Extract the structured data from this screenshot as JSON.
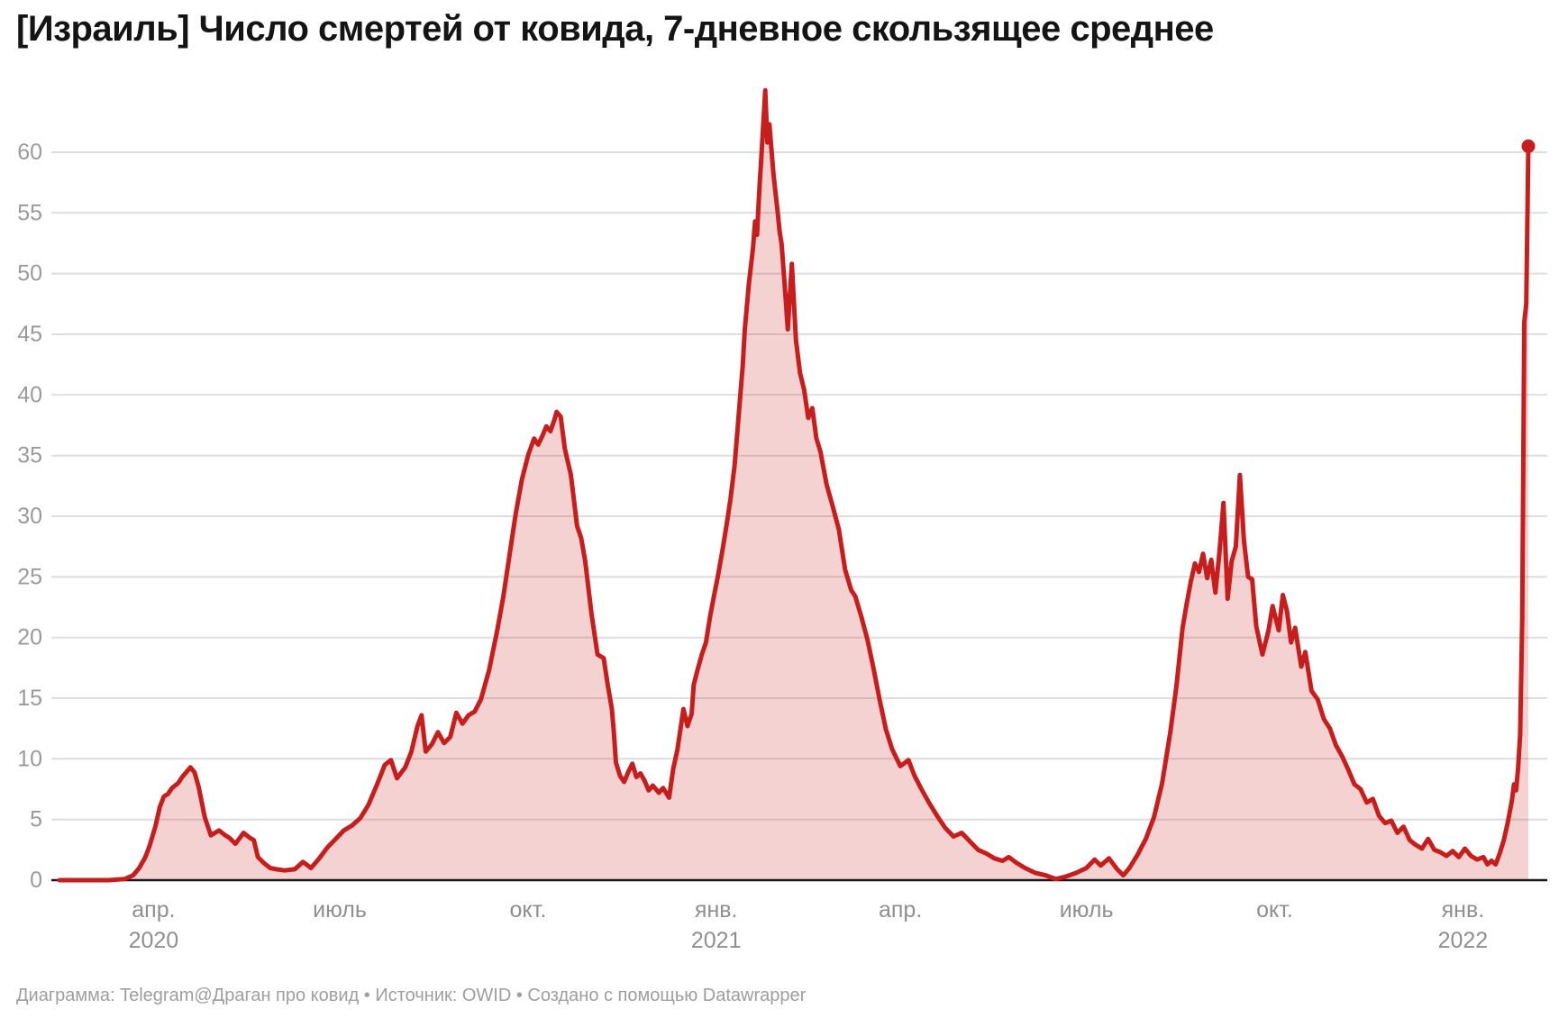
{
  "title": "[Израиль] Число смертей от ковида, 7-дневное скользящее среднее",
  "footer": "Диаграмма: Telegram@Драган про ковид • Источник: OWID • Создано с помощью Datawrapper",
  "colors": {
    "line": "#c71e1d",
    "area_fill": "rgba(199,30,29,0.2)",
    "grid": "#dedede",
    "axis": "#18181a",
    "y_tick_label": "#9a9a9a",
    "x_tick_label": "#8f8f8f",
    "title": "#141414",
    "footer": "#9e9e9e",
    "background": "#ffffff"
  },
  "chart_data": {
    "type": "area",
    "title": "[Израиль] Число смертей от ковида, 7-дневное скользящее среднее",
    "series_name": "Число смертей от ковида, 7-дневное скользящее среднее",
    "xlabel": "",
    "ylabel": "",
    "grid": "horizontal",
    "legend": "none",
    "x_domain": [
      "2020-02-15",
      "2022-02-02"
    ],
    "ylim": [
      0,
      66
    ],
    "y_ticks": [
      0,
      5,
      10,
      15,
      20,
      25,
      30,
      35,
      40,
      45,
      50,
      55,
      60
    ],
    "x_ticks": [
      {
        "date": "2020-04-01",
        "label": "апр.",
        "year": "2020"
      },
      {
        "date": "2020-07-01",
        "label": "июль",
        "year": ""
      },
      {
        "date": "2020-10-01",
        "label": "окт.",
        "year": ""
      },
      {
        "date": "2021-01-01",
        "label": "янв.",
        "year": "2021"
      },
      {
        "date": "2021-04-01",
        "label": "апр.",
        "year": ""
      },
      {
        "date": "2021-07-01",
        "label": "июль",
        "year": ""
      },
      {
        "date": "2021-10-01",
        "label": "окт.",
        "year": ""
      },
      {
        "date": "2022-01-01",
        "label": "янв.",
        "year": "2022"
      }
    ],
    "last_point": {
      "date": "2022-02-02",
      "value": 60.5
    },
    "points": [
      [
        "2020-02-15",
        0.0
      ],
      [
        "2020-03-01",
        0.0
      ],
      [
        "2020-03-10",
        0.0
      ],
      [
        "2020-03-18",
        0.1
      ],
      [
        "2020-03-22",
        0.4
      ],
      [
        "2020-03-25",
        1.0
      ],
      [
        "2020-03-28",
        1.9
      ],
      [
        "2020-03-30",
        2.8
      ],
      [
        "2020-04-02",
        4.5
      ],
      [
        "2020-04-04",
        6.0
      ],
      [
        "2020-04-06",
        6.9
      ],
      [
        "2020-04-08",
        7.1
      ],
      [
        "2020-04-10",
        7.6
      ],
      [
        "2020-04-13",
        8.0
      ],
      [
        "2020-04-15",
        8.5
      ],
      [
        "2020-04-17",
        8.9
      ],
      [
        "2020-04-19",
        9.3
      ],
      [
        "2020-04-21",
        8.9
      ],
      [
        "2020-04-23",
        7.7
      ],
      [
        "2020-04-26",
        5.2
      ],
      [
        "2020-04-29",
        3.7
      ],
      [
        "2020-05-03",
        4.1
      ],
      [
        "2020-05-06",
        3.7
      ],
      [
        "2020-05-08",
        3.5
      ],
      [
        "2020-05-11",
        3.0
      ],
      [
        "2020-05-15",
        3.9
      ],
      [
        "2020-05-18",
        3.5
      ],
      [
        "2020-05-20",
        3.3
      ],
      [
        "2020-05-22",
        1.9
      ],
      [
        "2020-05-25",
        1.4
      ],
      [
        "2020-05-28",
        1.0
      ],
      [
        "2020-05-31",
        0.9
      ],
      [
        "2020-06-04",
        0.8
      ],
      [
        "2020-06-09",
        0.9
      ],
      [
        "2020-06-13",
        1.5
      ],
      [
        "2020-06-17",
        1.0
      ],
      [
        "2020-06-21",
        1.8
      ],
      [
        "2020-06-25",
        2.7
      ],
      [
        "2020-06-29",
        3.4
      ],
      [
        "2020-07-03",
        4.1
      ],
      [
        "2020-07-07",
        4.5
      ],
      [
        "2020-07-11",
        5.1
      ],
      [
        "2020-07-15",
        6.2
      ],
      [
        "2020-07-19",
        7.8
      ],
      [
        "2020-07-23",
        9.5
      ],
      [
        "2020-07-26",
        9.9
      ],
      [
        "2020-07-29",
        8.4
      ],
      [
        "2020-08-02",
        9.3
      ],
      [
        "2020-08-05",
        10.6
      ],
      [
        "2020-08-08",
        12.7
      ],
      [
        "2020-08-10",
        13.6
      ],
      [
        "2020-08-12",
        10.6
      ],
      [
        "2020-08-15",
        11.2
      ],
      [
        "2020-08-18",
        12.2
      ],
      [
        "2020-08-21",
        11.3
      ],
      [
        "2020-08-24",
        11.8
      ],
      [
        "2020-08-27",
        13.8
      ],
      [
        "2020-08-30",
        12.9
      ],
      [
        "2020-09-02",
        13.6
      ],
      [
        "2020-09-05",
        13.9
      ],
      [
        "2020-09-08",
        14.9
      ],
      [
        "2020-09-12",
        17.3
      ],
      [
        "2020-09-16",
        20.6
      ],
      [
        "2020-09-19",
        23.4
      ],
      [
        "2020-09-22",
        26.8
      ],
      [
        "2020-09-25",
        30.2
      ],
      [
        "2020-09-28",
        33.0
      ],
      [
        "2020-10-01",
        35.0
      ],
      [
        "2020-10-04",
        36.4
      ],
      [
        "2020-10-06",
        35.9
      ],
      [
        "2020-10-08",
        36.6
      ],
      [
        "2020-10-10",
        37.4
      ],
      [
        "2020-10-12",
        37.0
      ],
      [
        "2020-10-14",
        38.0
      ],
      [
        "2020-10-15",
        38.6
      ],
      [
        "2020-10-17",
        38.2
      ],
      [
        "2020-10-19",
        35.6
      ],
      [
        "2020-10-22",
        33.4
      ],
      [
        "2020-10-25",
        29.2
      ],
      [
        "2020-10-27",
        28.2
      ],
      [
        "2020-10-29",
        26.3
      ],
      [
        "2020-11-01",
        22.0
      ],
      [
        "2020-11-04",
        18.6
      ],
      [
        "2020-11-07",
        18.3
      ],
      [
        "2020-11-09",
        16.1
      ],
      [
        "2020-11-11",
        14.1
      ],
      [
        "2020-11-12",
        12.2
      ],
      [
        "2020-11-13",
        9.7
      ],
      [
        "2020-11-15",
        8.6
      ],
      [
        "2020-11-17",
        8.1
      ],
      [
        "2020-11-19",
        8.9
      ],
      [
        "2020-11-21",
        9.6
      ],
      [
        "2020-11-23",
        8.5
      ],
      [
        "2020-11-25",
        8.8
      ],
      [
        "2020-11-27",
        8.2
      ],
      [
        "2020-11-29",
        7.4
      ],
      [
        "2020-12-01",
        7.8
      ],
      [
        "2020-12-04",
        7.2
      ],
      [
        "2020-12-06",
        7.6
      ],
      [
        "2020-12-09",
        6.8
      ],
      [
        "2020-12-11",
        9.2
      ],
      [
        "2020-12-13",
        10.7
      ],
      [
        "2020-12-16",
        14.1
      ],
      [
        "2020-12-18",
        12.7
      ],
      [
        "2020-12-20",
        13.7
      ],
      [
        "2020-12-21",
        16.1
      ],
      [
        "2020-12-23",
        17.4
      ],
      [
        "2020-12-25",
        18.6
      ],
      [
        "2020-12-27",
        19.6
      ],
      [
        "2020-12-29",
        21.7
      ],
      [
        "2020-12-31",
        23.5
      ],
      [
        "2021-01-02",
        25.2
      ],
      [
        "2021-01-04",
        27.1
      ],
      [
        "2021-01-06",
        29.2
      ],
      [
        "2021-01-08",
        31.4
      ],
      [
        "2021-01-10",
        34.2
      ],
      [
        "2021-01-12",
        38.3
      ],
      [
        "2021-01-14",
        42.4
      ],
      [
        "2021-01-15",
        45.4
      ],
      [
        "2021-01-17",
        49.2
      ],
      [
        "2021-01-19",
        52.1
      ],
      [
        "2021-01-20",
        54.3
      ],
      [
        "2021-01-21",
        53.2
      ],
      [
        "2021-01-22",
        56.6
      ],
      [
        "2021-01-23",
        59.4
      ],
      [
        "2021-01-25",
        65.1
      ],
      [
        "2021-01-26",
        60.8
      ],
      [
        "2021-01-27",
        62.3
      ],
      [
        "2021-01-29",
        58.2
      ],
      [
        "2021-01-31",
        55.2
      ],
      [
        "2021-02-01",
        53.5
      ],
      [
        "2021-02-02",
        52.4
      ],
      [
        "2021-02-04",
        47.9
      ],
      [
        "2021-02-05",
        45.4
      ],
      [
        "2021-02-07",
        50.8
      ],
      [
        "2021-02-09",
        44.5
      ],
      [
        "2021-02-11",
        41.8
      ],
      [
        "2021-02-13",
        40.4
      ],
      [
        "2021-02-15",
        38.1
      ],
      [
        "2021-02-17",
        38.9
      ],
      [
        "2021-02-19",
        36.4
      ],
      [
        "2021-02-21",
        35.3
      ],
      [
        "2021-02-24",
        32.6
      ],
      [
        "2021-02-27",
        30.8
      ],
      [
        "2021-03-02",
        28.9
      ],
      [
        "2021-03-05",
        25.6
      ],
      [
        "2021-03-08",
        23.9
      ],
      [
        "2021-03-10",
        23.4
      ],
      [
        "2021-03-13",
        21.7
      ],
      [
        "2021-03-16",
        19.8
      ],
      [
        "2021-03-19",
        17.4
      ],
      [
        "2021-03-22",
        14.8
      ],
      [
        "2021-03-25",
        12.4
      ],
      [
        "2021-03-28",
        10.8
      ],
      [
        "2021-04-01",
        9.4
      ],
      [
        "2021-04-05",
        9.9
      ],
      [
        "2021-04-08",
        8.6
      ],
      [
        "2021-04-11",
        7.6
      ],
      [
        "2021-04-15",
        6.4
      ],
      [
        "2021-04-19",
        5.3
      ],
      [
        "2021-04-23",
        4.3
      ],
      [
        "2021-04-27",
        3.6
      ],
      [
        "2021-05-01",
        3.9
      ],
      [
        "2021-05-05",
        3.2
      ],
      [
        "2021-05-09",
        2.5
      ],
      [
        "2021-05-13",
        2.2
      ],
      [
        "2021-05-17",
        1.8
      ],
      [
        "2021-05-21",
        1.6
      ],
      [
        "2021-05-24",
        1.9
      ],
      [
        "2021-05-28",
        1.4
      ],
      [
        "2021-06-01",
        1.0
      ],
      [
        "2021-06-06",
        0.6
      ],
      [
        "2021-06-11",
        0.4
      ],
      [
        "2021-06-16",
        0.1
      ],
      [
        "2021-06-21",
        0.3
      ],
      [
        "2021-06-26",
        0.6
      ],
      [
        "2021-07-01",
        1.0
      ],
      [
        "2021-07-05",
        1.7
      ],
      [
        "2021-07-08",
        1.2
      ],
      [
        "2021-07-12",
        1.8
      ],
      [
        "2021-07-16",
        0.9
      ],
      [
        "2021-07-19",
        0.4
      ],
      [
        "2021-07-22",
        1.0
      ],
      [
        "2021-07-26",
        2.1
      ],
      [
        "2021-07-30",
        3.4
      ],
      [
        "2021-08-03",
        5.2
      ],
      [
        "2021-08-07",
        8.0
      ],
      [
        "2021-08-11",
        12.2
      ],
      [
        "2021-08-14",
        16.0
      ],
      [
        "2021-08-17",
        20.8
      ],
      [
        "2021-08-19",
        22.8
      ],
      [
        "2021-08-21",
        24.6
      ],
      [
        "2021-08-23",
        26.1
      ],
      [
        "2021-08-25",
        25.4
      ],
      [
        "2021-08-27",
        26.9
      ],
      [
        "2021-08-29",
        24.9
      ],
      [
        "2021-08-31",
        26.4
      ],
      [
        "2021-09-02",
        23.7
      ],
      [
        "2021-09-04",
        27.0
      ],
      [
        "2021-09-06",
        31.1
      ],
      [
        "2021-09-08",
        23.2
      ],
      [
        "2021-09-10",
        26.3
      ],
      [
        "2021-09-12",
        27.5
      ],
      [
        "2021-09-14",
        33.4
      ],
      [
        "2021-09-16",
        28.0
      ],
      [
        "2021-09-18",
        25.0
      ],
      [
        "2021-09-20",
        24.8
      ],
      [
        "2021-09-22",
        20.9
      ],
      [
        "2021-09-25",
        18.6
      ],
      [
        "2021-09-28",
        20.6
      ],
      [
        "2021-09-30",
        22.6
      ],
      [
        "2021-10-03",
        20.6
      ],
      [
        "2021-10-05",
        23.5
      ],
      [
        "2021-10-07",
        22.2
      ],
      [
        "2021-10-09",
        19.6
      ],
      [
        "2021-10-11",
        20.8
      ],
      [
        "2021-10-14",
        17.6
      ],
      [
        "2021-10-16",
        18.8
      ],
      [
        "2021-10-19",
        15.6
      ],
      [
        "2021-10-22",
        14.9
      ],
      [
        "2021-10-25",
        13.3
      ],
      [
        "2021-10-28",
        12.5
      ],
      [
        "2021-10-31",
        11.1
      ],
      [
        "2021-11-03",
        10.2
      ],
      [
        "2021-11-06",
        9.1
      ],
      [
        "2021-11-09",
        7.9
      ],
      [
        "2021-11-12",
        7.5
      ],
      [
        "2021-11-15",
        6.4
      ],
      [
        "2021-11-18",
        6.7
      ],
      [
        "2021-11-21",
        5.3
      ],
      [
        "2021-11-24",
        4.7
      ],
      [
        "2021-11-27",
        4.9
      ],
      [
        "2021-11-30",
        3.9
      ],
      [
        "2021-12-03",
        4.4
      ],
      [
        "2021-12-06",
        3.3
      ],
      [
        "2021-12-09",
        2.9
      ],
      [
        "2021-12-12",
        2.6
      ],
      [
        "2021-12-15",
        3.4
      ],
      [
        "2021-12-18",
        2.5
      ],
      [
        "2021-12-21",
        2.3
      ],
      [
        "2021-12-24",
        2.0
      ],
      [
        "2021-12-27",
        2.4
      ],
      [
        "2021-12-30",
        1.9
      ],
      [
        "2022-01-02",
        2.6
      ],
      [
        "2022-01-05",
        2.0
      ],
      [
        "2022-01-08",
        1.7
      ],
      [
        "2022-01-11",
        1.9
      ],
      [
        "2022-01-13",
        1.3
      ],
      [
        "2022-01-15",
        1.6
      ],
      [
        "2022-01-17",
        1.3
      ],
      [
        "2022-01-19",
        2.2
      ],
      [
        "2022-01-21",
        3.3
      ],
      [
        "2022-01-23",
        4.8
      ],
      [
        "2022-01-25",
        6.6
      ],
      [
        "2022-01-26",
        7.9
      ],
      [
        "2022-01-27",
        7.4
      ],
      [
        "2022-01-28",
        9.2
      ],
      [
        "2022-01-29",
        12.0
      ],
      [
        "2022-01-30",
        21.5
      ],
      [
        "2022-01-31",
        46.0
      ],
      [
        "2022-02-01",
        47.5
      ],
      [
        "2022-02-02",
        60.5
      ]
    ]
  }
}
